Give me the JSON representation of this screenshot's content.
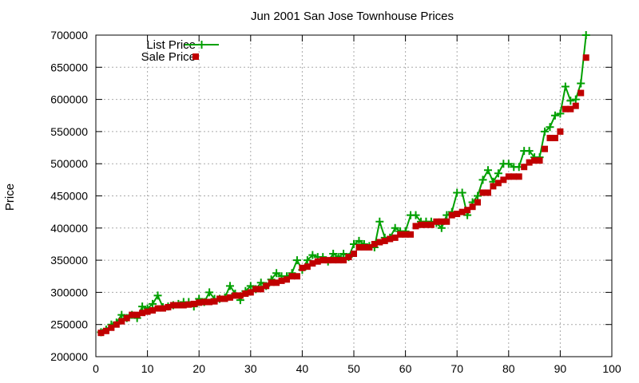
{
  "chart_data": {
    "type": "line",
    "title": "Jun 2001 San Jose Townhouse Prices",
    "xlabel": "",
    "ylabel": "Price",
    "xlim": [
      0,
      100
    ],
    "ylim": [
      200000,
      700000
    ],
    "xticks": [
      0,
      10,
      20,
      30,
      40,
      50,
      60,
      70,
      80,
      90,
      100
    ],
    "yticks": [
      200000,
      250000,
      300000,
      350000,
      400000,
      450000,
      500000,
      550000,
      600000,
      650000,
      700000
    ],
    "xtick_labels": [
      "0",
      "10",
      "20",
      "30",
      "40",
      "50",
      "60",
      "70",
      "80",
      "90",
      "100"
    ],
    "ytick_labels": [
      "200000",
      "250000",
      "300000",
      "350000",
      "400000",
      "450000",
      "500000",
      "550000",
      "600000",
      "650000",
      "700000"
    ],
    "grid": true,
    "legend_position": "top-left",
    "series": [
      {
        "name": "List Price",
        "type": "line",
        "marker": "plus",
        "color": "#00a000",
        "x": [
          1,
          2,
          3,
          4,
          5,
          6,
          7,
          8,
          9,
          10,
          11,
          12,
          13,
          14,
          15,
          16,
          17,
          18,
          19,
          20,
          21,
          22,
          23,
          24,
          25,
          26,
          27,
          28,
          29,
          30,
          31,
          32,
          33,
          34,
          35,
          36,
          37,
          38,
          39,
          40,
          41,
          42,
          43,
          44,
          45,
          46,
          47,
          48,
          49,
          50,
          51,
          52,
          53,
          54,
          55,
          56,
          57,
          58,
          59,
          60,
          61,
          62,
          63,
          64,
          65,
          66,
          67,
          68,
          69,
          70,
          71,
          72,
          73,
          74,
          75,
          76,
          77,
          78,
          79,
          80,
          81,
          82,
          83,
          84,
          85,
          86,
          87,
          88,
          89,
          90,
          91,
          92,
          93,
          94,
          95
        ],
        "values": [
          238000,
          242000,
          250000,
          253000,
          265000,
          260000,
          265000,
          260000,
          278000,
          275000,
          282000,
          295000,
          277000,
          278000,
          280000,
          282000,
          285000,
          285000,
          278000,
          290000,
          285000,
          300000,
          290000,
          290000,
          292000,
          310000,
          298000,
          288000,
          302000,
          310000,
          305000,
          315000,
          310000,
          320000,
          330000,
          325000,
          325000,
          330000,
          350000,
          335000,
          350000,
          358000,
          355000,
          355000,
          348000,
          360000,
          355000,
          360000,
          355000,
          375000,
          380000,
          375000,
          372000,
          370000,
          410000,
          385000,
          385000,
          400000,
          395000,
          395000,
          420000,
          420000,
          410000,
          410000,
          410000,
          408000,
          400000,
          420000,
          425000,
          455000,
          455000,
          420000,
          440000,
          450000,
          475000,
          490000,
          472000,
          485000,
          500000,
          500000,
          495000,
          495000,
          520000,
          520000,
          510000,
          510000,
          550000,
          557000,
          575000,
          578000,
          620000,
          598000,
          600000,
          625000,
          700000
        ]
      },
      {
        "name": "Sale Price",
        "type": "scatter",
        "marker": "square",
        "color": "#c00000",
        "x": [
          1,
          2,
          3,
          4,
          5,
          6,
          7,
          8,
          9,
          10,
          11,
          12,
          13,
          14,
          15,
          16,
          17,
          18,
          19,
          20,
          21,
          22,
          23,
          24,
          25,
          26,
          27,
          28,
          29,
          30,
          31,
          32,
          33,
          34,
          35,
          36,
          37,
          38,
          39,
          40,
          41,
          42,
          43,
          44,
          45,
          46,
          47,
          48,
          49,
          50,
          51,
          52,
          53,
          54,
          55,
          56,
          57,
          58,
          59,
          60,
          61,
          62,
          63,
          64,
          65,
          66,
          67,
          68,
          69,
          70,
          71,
          72,
          73,
          74,
          75,
          76,
          77,
          78,
          79,
          80,
          81,
          82,
          83,
          84,
          85,
          86,
          87,
          88,
          89,
          90,
          91,
          92,
          93,
          94,
          95
        ],
        "values": [
          237000,
          240000,
          245000,
          250000,
          255000,
          260000,
          265000,
          265000,
          268000,
          270000,
          272000,
          275000,
          275000,
          277000,
          280000,
          280000,
          280000,
          281000,
          282000,
          284000,
          285000,
          285000,
          286000,
          290000,
          290000,
          292000,
          295000,
          295000,
          298000,
          300000,
          305000,
          305000,
          310000,
          315000,
          315000,
          318000,
          320000,
          325000,
          325000,
          338000,
          340000,
          345000,
          348000,
          350000,
          350000,
          350000,
          350000,
          350000,
          355000,
          360000,
          370000,
          370000,
          370000,
          375000,
          378000,
          380000,
          383000,
          385000,
          390000,
          390000,
          390000,
          403000,
          405000,
          405000,
          405000,
          410000,
          410000,
          410000,
          420000,
          422000,
          425000,
          428000,
          433000,
          440000,
          455000,
          455000,
          465000,
          470000,
          475000,
          480000,
          480000,
          480000,
          495000,
          502000,
          505000,
          505000,
          523000,
          540000,
          540000,
          550000,
          585000,
          585000,
          590000,
          610000,
          665000
        ]
      }
    ]
  }
}
